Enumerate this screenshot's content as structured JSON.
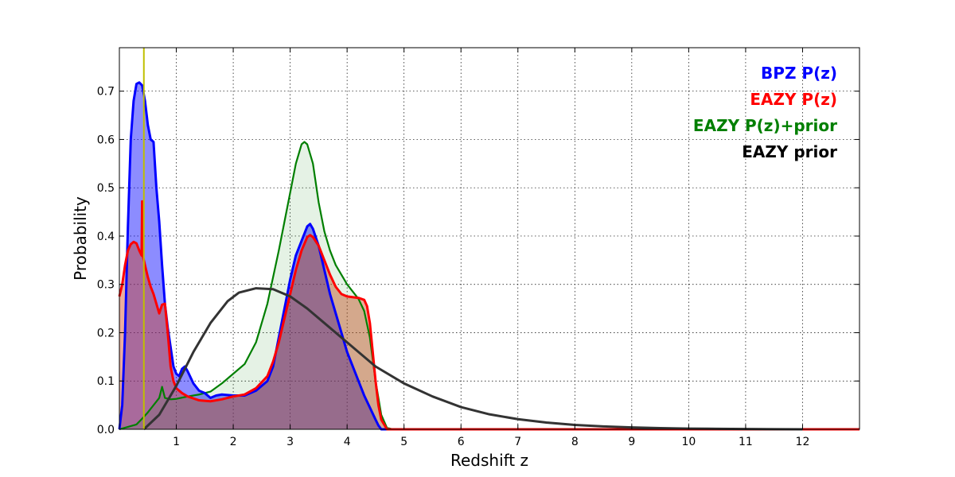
{
  "chart_data": {
    "type": "area",
    "title": "",
    "xlabel": "Redshift z",
    "ylabel": "Probability",
    "xlim": [
      0,
      13
    ],
    "ylim": [
      0,
      0.79
    ],
    "xticks": [
      1,
      2,
      3,
      4,
      5,
      6,
      7,
      8,
      9,
      10,
      11,
      12
    ],
    "xtick_labels": [
      "1",
      "2",
      "3",
      "4",
      "5",
      "6",
      "7",
      "8",
      "9",
      "10",
      "11",
      "12"
    ],
    "yticks": [
      0.0,
      0.1,
      0.2,
      0.3,
      0.4,
      0.5,
      0.6,
      0.7
    ],
    "ytick_labels": [
      "0.0",
      "0.1",
      "0.2",
      "0.3",
      "0.4",
      "0.5",
      "0.6",
      "0.7"
    ],
    "grid": true,
    "legend_position": "top-right",
    "reference_line": {
      "x": 0.43,
      "color": "#bfbf00"
    },
    "series": [
      {
        "name": "EAZY prior",
        "color": "#333333",
        "filled": false,
        "points": [
          [
            0.43,
            0.0
          ],
          [
            0.7,
            0.03
          ],
          [
            1.0,
            0.09
          ],
          [
            1.3,
            0.16
          ],
          [
            1.6,
            0.22
          ],
          [
            1.9,
            0.265
          ],
          [
            2.1,
            0.283
          ],
          [
            2.4,
            0.292
          ],
          [
            2.7,
            0.29
          ],
          [
            3.0,
            0.275
          ],
          [
            3.3,
            0.25
          ],
          [
            3.6,
            0.22
          ],
          [
            4.0,
            0.18
          ],
          [
            4.5,
            0.13
          ],
          [
            5.0,
            0.095
          ],
          [
            5.5,
            0.068
          ],
          [
            6.0,
            0.046
          ],
          [
            6.5,
            0.031
          ],
          [
            7.0,
            0.021
          ],
          [
            7.5,
            0.014
          ],
          [
            8.0,
            0.009
          ],
          [
            8.5,
            0.006
          ],
          [
            9.0,
            0.004
          ],
          [
            9.5,
            0.0025
          ],
          [
            10.0,
            0.0015
          ],
          [
            10.5,
            0.001
          ],
          [
            11.0,
            0.0006
          ],
          [
            11.5,
            0.0003
          ],
          [
            12.0,
            0.0
          ]
        ]
      },
      {
        "name": "BPZ P(z)",
        "color": "#0000ff",
        "filled": true,
        "fill_color": "rgba(0,0,255,0.45)",
        "points": [
          [
            0.0,
            0.0
          ],
          [
            0.05,
            0.05
          ],
          [
            0.1,
            0.2
          ],
          [
            0.15,
            0.42
          ],
          [
            0.2,
            0.6
          ],
          [
            0.25,
            0.68
          ],
          [
            0.3,
            0.715
          ],
          [
            0.35,
            0.718
          ],
          [
            0.4,
            0.712
          ],
          [
            0.45,
            0.68
          ],
          [
            0.5,
            0.63
          ],
          [
            0.55,
            0.6
          ],
          [
            0.6,
            0.595
          ],
          [
            0.65,
            0.5
          ],
          [
            0.7,
            0.43
          ],
          [
            0.75,
            0.34
          ],
          [
            0.8,
            0.26
          ],
          [
            0.85,
            0.21
          ],
          [
            0.9,
            0.17
          ],
          [
            0.95,
            0.13
          ],
          [
            1.0,
            0.115
          ],
          [
            1.05,
            0.11
          ],
          [
            1.1,
            0.125
          ],
          [
            1.15,
            0.13
          ],
          [
            1.2,
            0.12
          ],
          [
            1.3,
            0.095
          ],
          [
            1.4,
            0.08
          ],
          [
            1.5,
            0.075
          ],
          [
            1.6,
            0.065
          ],
          [
            1.7,
            0.07
          ],
          [
            1.8,
            0.072
          ],
          [
            2.0,
            0.07
          ],
          [
            2.2,
            0.07
          ],
          [
            2.4,
            0.08
          ],
          [
            2.6,
            0.1
          ],
          [
            2.7,
            0.13
          ],
          [
            2.8,
            0.19
          ],
          [
            2.9,
            0.25
          ],
          [
            3.0,
            0.31
          ],
          [
            3.1,
            0.36
          ],
          [
            3.2,
            0.39
          ],
          [
            3.3,
            0.42
          ],
          [
            3.35,
            0.425
          ],
          [
            3.4,
            0.415
          ],
          [
            3.5,
            0.38
          ],
          [
            3.6,
            0.33
          ],
          [
            3.7,
            0.28
          ],
          [
            3.8,
            0.24
          ],
          [
            3.9,
            0.2
          ],
          [
            4.0,
            0.16
          ],
          [
            4.1,
            0.13
          ],
          [
            4.2,
            0.1
          ],
          [
            4.3,
            0.07
          ],
          [
            4.4,
            0.045
          ],
          [
            4.5,
            0.02
          ],
          [
            4.55,
            0.008
          ],
          [
            4.6,
            0.0
          ],
          [
            13.0,
            0.0
          ]
        ]
      },
      {
        "name": "EAZY P(z)",
        "color": "#ff0000",
        "filled": true,
        "fill_color": "rgba(210,60,20,0.42)",
        "points": [
          [
            0.0,
            0.275
          ],
          [
            0.05,
            0.3
          ],
          [
            0.1,
            0.34
          ],
          [
            0.15,
            0.37
          ],
          [
            0.2,
            0.383
          ],
          [
            0.25,
            0.388
          ],
          [
            0.3,
            0.385
          ],
          [
            0.35,
            0.37
          ],
          [
            0.39,
            0.36
          ],
          [
            0.4,
            0.472
          ],
          [
            0.41,
            0.36
          ],
          [
            0.45,
            0.34
          ],
          [
            0.5,
            0.315
          ],
          [
            0.55,
            0.295
          ],
          [
            0.6,
            0.28
          ],
          [
            0.65,
            0.26
          ],
          [
            0.7,
            0.24
          ],
          [
            0.75,
            0.258
          ],
          [
            0.8,
            0.26
          ],
          [
            0.85,
            0.2
          ],
          [
            0.9,
            0.13
          ],
          [
            0.95,
            0.1
          ],
          [
            1.0,
            0.085
          ],
          [
            1.1,
            0.075
          ],
          [
            1.2,
            0.068
          ],
          [
            1.4,
            0.06
          ],
          [
            1.6,
            0.058
          ],
          [
            1.8,
            0.062
          ],
          [
            2.0,
            0.068
          ],
          [
            2.2,
            0.072
          ],
          [
            2.4,
            0.085
          ],
          [
            2.6,
            0.11
          ],
          [
            2.7,
            0.14
          ],
          [
            2.8,
            0.18
          ],
          [
            2.9,
            0.23
          ],
          [
            3.0,
            0.28
          ],
          [
            3.1,
            0.33
          ],
          [
            3.2,
            0.37
          ],
          [
            3.3,
            0.398
          ],
          [
            3.35,
            0.402
          ],
          [
            3.4,
            0.398
          ],
          [
            3.5,
            0.38
          ],
          [
            3.6,
            0.35
          ],
          [
            3.7,
            0.32
          ],
          [
            3.8,
            0.295
          ],
          [
            3.9,
            0.28
          ],
          [
            4.0,
            0.275
          ],
          [
            4.2,
            0.272
          ],
          [
            4.3,
            0.268
          ],
          [
            4.35,
            0.255
          ],
          [
            4.4,
            0.22
          ],
          [
            4.45,
            0.16
          ],
          [
            4.5,
            0.1
          ],
          [
            4.55,
            0.05
          ],
          [
            4.6,
            0.02
          ],
          [
            4.7,
            0.0
          ],
          [
            13.0,
            0.0
          ]
        ]
      },
      {
        "name": "EAZY P(z)+prior",
        "color": "#007f00",
        "filled": true,
        "fill_color": "rgba(0,127,0,0.10)",
        "points": [
          [
            0.0,
            0.0
          ],
          [
            0.3,
            0.01
          ],
          [
            0.4,
            0.022
          ],
          [
            0.5,
            0.035
          ],
          [
            0.6,
            0.05
          ],
          [
            0.7,
            0.065
          ],
          [
            0.75,
            0.088
          ],
          [
            0.8,
            0.065
          ],
          [
            0.9,
            0.062
          ],
          [
            1.0,
            0.063
          ],
          [
            1.2,
            0.068
          ],
          [
            1.4,
            0.072
          ],
          [
            1.6,
            0.078
          ],
          [
            1.8,
            0.095
          ],
          [
            2.0,
            0.115
          ],
          [
            2.2,
            0.135
          ],
          [
            2.4,
            0.18
          ],
          [
            2.6,
            0.26
          ],
          [
            2.8,
            0.37
          ],
          [
            2.9,
            0.43
          ],
          [
            3.0,
            0.49
          ],
          [
            3.1,
            0.55
          ],
          [
            3.2,
            0.59
          ],
          [
            3.25,
            0.595
          ],
          [
            3.3,
            0.59
          ],
          [
            3.4,
            0.55
          ],
          [
            3.5,
            0.47
          ],
          [
            3.6,
            0.41
          ],
          [
            3.7,
            0.37
          ],
          [
            3.8,
            0.34
          ],
          [
            3.9,
            0.32
          ],
          [
            4.0,
            0.3
          ],
          [
            4.1,
            0.285
          ],
          [
            4.2,
            0.27
          ],
          [
            4.3,
            0.245
          ],
          [
            4.4,
            0.19
          ],
          [
            4.5,
            0.1
          ],
          [
            4.6,
            0.03
          ],
          [
            4.7,
            0.003
          ],
          [
            4.8,
            0.0
          ],
          [
            13.0,
            0.0
          ]
        ]
      }
    ],
    "legend": [
      {
        "label": "BPZ P(z)",
        "color": "#0000ff"
      },
      {
        "label": "EAZY P(z)",
        "color": "#ff0000"
      },
      {
        "label": "EAZY P(z)+prior",
        "color": "#007f00"
      },
      {
        "label": "EAZY prior",
        "color": "#000000"
      }
    ]
  }
}
